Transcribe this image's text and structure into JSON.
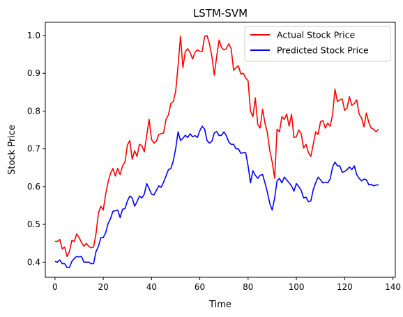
{
  "chart_data": {
    "type": "line",
    "title": "LSTM-SVM",
    "xlabel": "Time",
    "ylabel": "Stock Price",
    "xlim": [
      -4,
      141
    ],
    "ylim": [
      0.36,
      1.035
    ],
    "xticks": [
      0,
      20,
      40,
      60,
      80,
      100,
      120,
      140
    ],
    "xtick_labels": [
      "0",
      "20",
      "40",
      "60",
      "80",
      "100",
      "120",
      "140"
    ],
    "yticks": [
      0.4,
      0.5,
      0.6,
      0.7,
      0.8,
      0.9,
      1.0
    ],
    "ytick_labels": [
      "0.4",
      "0.5",
      "0.6",
      "0.7",
      "0.8",
      "0.9",
      "1.0"
    ],
    "grid": false,
    "legend_position": "top-right",
    "series": [
      {
        "name": "Actual Stock Price",
        "color": "#ff0000",
        "x": [
          0,
          1,
          2,
          3,
          4,
          5,
          6,
          7,
          8,
          9,
          10,
          11,
          12,
          13,
          14,
          15,
          16,
          17,
          18,
          19,
          20,
          21,
          22,
          23,
          24,
          25,
          26,
          27,
          28,
          29,
          30,
          31,
          32,
          33,
          34,
          35,
          36,
          37,
          38,
          39,
          40,
          41,
          42,
          43,
          44,
          45,
          46,
          47,
          48,
          49,
          50,
          51,
          52,
          53,
          54,
          55,
          56,
          57,
          58,
          59,
          60,
          61,
          62,
          63,
          64,
          65,
          66,
          67,
          68,
          69,
          70,
          71,
          72,
          73,
          74,
          75,
          76,
          77,
          78,
          79,
          80,
          81,
          82,
          83,
          84,
          85,
          86,
          87,
          88,
          89,
          90,
          91,
          92,
          93,
          94,
          95,
          96,
          97,
          98,
          99,
          100,
          101,
          102,
          103,
          104,
          105,
          106,
          107,
          108,
          109,
          110,
          111,
          112,
          113,
          114,
          115,
          116,
          117,
          118,
          119,
          120,
          121,
          122,
          123,
          124,
          125,
          126,
          127,
          128,
          129,
          130,
          131,
          132,
          133,
          134
        ],
        "values": [
          0.455,
          0.455,
          0.46,
          0.435,
          0.44,
          0.415,
          0.428,
          0.458,
          0.455,
          0.475,
          0.465,
          0.452,
          0.442,
          0.45,
          0.442,
          0.438,
          0.44,
          0.475,
          0.53,
          0.548,
          0.538,
          0.58,
          0.612,
          0.635,
          0.648,
          0.628,
          0.648,
          0.632,
          0.655,
          0.665,
          0.71,
          0.722,
          0.672,
          0.695,
          0.68,
          0.712,
          0.708,
          0.692,
          0.735,
          0.778,
          0.725,
          0.715,
          0.72,
          0.738,
          0.74,
          0.742,
          0.778,
          0.79,
          0.82,
          0.825,
          0.852,
          0.92,
          0.998,
          0.915,
          0.958,
          0.965,
          0.955,
          0.938,
          0.955,
          0.962,
          0.958,
          0.958,
          0.998,
          1.0,
          0.978,
          0.945,
          0.895,
          0.945,
          0.988,
          0.968,
          0.962,
          0.965,
          0.978,
          0.965,
          0.908,
          0.915,
          0.92,
          0.898,
          0.9,
          0.888,
          0.88,
          0.8,
          0.785,
          0.835,
          0.765,
          0.755,
          0.805,
          0.768,
          0.742,
          0.695,
          0.665,
          0.622,
          0.752,
          0.745,
          0.785,
          0.778,
          0.792,
          0.76,
          0.792,
          0.73,
          0.732,
          0.75,
          0.74,
          0.702,
          0.712,
          0.69,
          0.68,
          0.712,
          0.745,
          0.738,
          0.772,
          0.775,
          0.755,
          0.768,
          0.76,
          0.79,
          0.858,
          0.825,
          0.83,
          0.832,
          0.802,
          0.808,
          0.838,
          0.815,
          0.82,
          0.83,
          0.792,
          0.782,
          0.758,
          0.795,
          0.77,
          0.755,
          0.752,
          0.745,
          0.752
        ]
      },
      {
        "name": "Predicted Stock Price",
        "color": "#0000ff",
        "x": [
          0,
          1,
          2,
          3,
          4,
          5,
          6,
          7,
          8,
          9,
          10,
          11,
          12,
          13,
          14,
          15,
          16,
          17,
          18,
          19,
          20,
          21,
          22,
          23,
          24,
          25,
          26,
          27,
          28,
          29,
          30,
          31,
          32,
          33,
          34,
          35,
          36,
          37,
          38,
          39,
          40,
          41,
          42,
          43,
          44,
          45,
          46,
          47,
          48,
          49,
          50,
          51,
          52,
          53,
          54,
          55,
          56,
          57,
          58,
          59,
          60,
          61,
          62,
          63,
          64,
          65,
          66,
          67,
          68,
          69,
          70,
          71,
          72,
          73,
          74,
          75,
          76,
          77,
          78,
          79,
          80,
          81,
          82,
          83,
          84,
          85,
          86,
          87,
          88,
          89,
          90,
          91,
          92,
          93,
          94,
          95,
          96,
          97,
          98,
          99,
          100,
          101,
          102,
          103,
          104,
          105,
          106,
          107,
          108,
          109,
          110,
          111,
          112,
          113,
          114,
          115,
          116,
          117,
          118,
          119,
          120,
          121,
          122,
          123,
          124,
          125,
          126,
          127,
          128,
          129,
          130,
          131,
          132,
          133,
          134
        ],
        "values": [
          0.402,
          0.4,
          0.406,
          0.396,
          0.396,
          0.386,
          0.386,
          0.402,
          0.41,
          0.415,
          0.414,
          0.415,
          0.4,
          0.4,
          0.4,
          0.396,
          0.396,
          0.428,
          0.442,
          0.465,
          0.465,
          0.478,
          0.502,
          0.515,
          0.535,
          0.536,
          0.538,
          0.518,
          0.54,
          0.542,
          0.562,
          0.575,
          0.57,
          0.548,
          0.56,
          0.575,
          0.57,
          0.58,
          0.608,
          0.595,
          0.58,
          0.578,
          0.59,
          0.602,
          0.598,
          0.612,
          0.628,
          0.645,
          0.648,
          0.668,
          0.7,
          0.745,
          0.722,
          0.728,
          0.736,
          0.73,
          0.74,
          0.732,
          0.735,
          0.73,
          0.748,
          0.76,
          0.752,
          0.722,
          0.715,
          0.72,
          0.742,
          0.746,
          0.735,
          0.736,
          0.745,
          0.735,
          0.718,
          0.712,
          0.712,
          0.7,
          0.7,
          0.688,
          0.69,
          0.69,
          0.655,
          0.61,
          0.642,
          0.63,
          0.622,
          0.63,
          0.632,
          0.61,
          0.585,
          0.555,
          0.538,
          0.57,
          0.615,
          0.622,
          0.61,
          0.625,
          0.618,
          0.61,
          0.602,
          0.588,
          0.608,
          0.6,
          0.59,
          0.57,
          0.572,
          0.56,
          0.562,
          0.592,
          0.61,
          0.625,
          0.618,
          0.61,
          0.612,
          0.61,
          0.62,
          0.652,
          0.665,
          0.655,
          0.655,
          0.638,
          0.64,
          0.645,
          0.652,
          0.645,
          0.655,
          0.632,
          0.622,
          0.615,
          0.62,
          0.618,
          0.605,
          0.606,
          0.602,
          0.604,
          0.605
        ]
      }
    ]
  }
}
